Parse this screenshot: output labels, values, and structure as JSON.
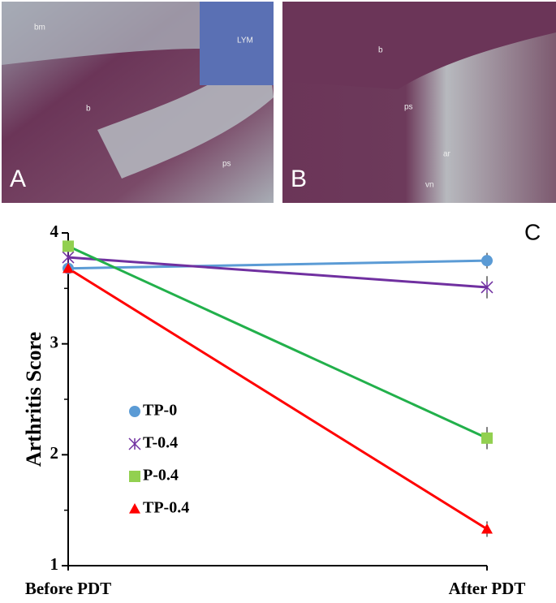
{
  "panels": [
    {
      "label": "A",
      "annotations": [
        "bm",
        "b",
        "LYM",
        "ps"
      ]
    },
    {
      "label": "B",
      "annotations": [
        "b",
        "ps",
        "ar",
        "vn"
      ]
    }
  ],
  "chart_data": {
    "type": "line",
    "panel_label": "C",
    "y_label": "Arthritis Score",
    "categories": [
      "Before PDT",
      "After PDT"
    ],
    "series": [
      {
        "name": "TP-0",
        "color": "#5b9bd5",
        "marker": "circle",
        "values": [
          3.68,
          3.75
        ],
        "errors": [
          null,
          0.07
        ]
      },
      {
        "name": "T-0.4",
        "color": "#7030a0",
        "marker": "star",
        "values": [
          3.78,
          3.51
        ],
        "errors": [
          null,
          0.1
        ]
      },
      {
        "name": "P-0.4",
        "color": "#22b04b",
        "marker": "square",
        "values": [
          3.88,
          2.15
        ],
        "errors": [
          null,
          0.1
        ]
      },
      {
        "name": "TP-0.4",
        "color": "#ff0000",
        "marker": "triangle",
        "values": [
          3.68,
          1.33
        ],
        "errors": [
          null,
          0.07
        ]
      }
    ],
    "ylim": [
      1,
      4
    ],
    "yticks": [
      1,
      2,
      3,
      4
    ],
    "minor_yticks": [
      1.5,
      2.5,
      3.5
    ],
    "grid": false
  }
}
